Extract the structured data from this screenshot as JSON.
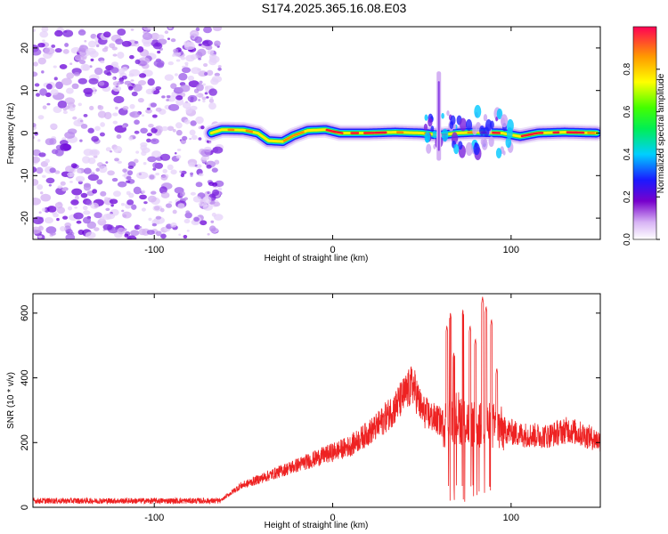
{
  "title": "S174.2025.365.16.08.E03",
  "chart_data": [
    {
      "type": "heatmap",
      "name": "spectrogram",
      "xlabel": "Height of straight line (km)",
      "ylabel": "Frequency (Hz)",
      "xlim": [
        -168,
        150
      ],
      "ylim": [
        -25,
        25
      ],
      "xticks": [
        -100,
        0,
        100
      ],
      "yticks": [
        -20,
        -10,
        0,
        10,
        20
      ],
      "noise_region_x": [
        -168,
        -63
      ],
      "ridge": [
        {
          "x": -68,
          "y": 0.0
        },
        {
          "x": -62,
          "y": 0.8
        },
        {
          "x": -50,
          "y": 0.7
        },
        {
          "x": -42,
          "y": 0.0
        },
        {
          "x": -36,
          "y": -1.8
        },
        {
          "x": -28,
          "y": -2.0
        },
        {
          "x": -22,
          "y": -0.6
        },
        {
          "x": -14,
          "y": 0.6
        },
        {
          "x": -4,
          "y": 0.8
        },
        {
          "x": 4,
          "y": 0.0
        },
        {
          "x": 20,
          "y": 0.0
        },
        {
          "x": 35,
          "y": 0.2
        },
        {
          "x": 50,
          "y": 0.0
        },
        {
          "x": 60,
          "y": -0.5
        },
        {
          "x": 70,
          "y": 0.0
        },
        {
          "x": 80,
          "y": 0.2
        },
        {
          "x": 95,
          "y": 0.0
        },
        {
          "x": 105,
          "y": -0.8
        },
        {
          "x": 115,
          "y": 0.0
        },
        {
          "x": 130,
          "y": 0.2
        },
        {
          "x": 148,
          "y": 0.0
        }
      ],
      "spike": {
        "x": 57,
        "y_range": [
          -6,
          14
        ]
      }
    },
    {
      "type": "colorbar",
      "label": "Normalized spectral amplitude",
      "range": [
        0,
        1
      ],
      "ticks": [
        "0.0",
        "0.2",
        "0.4",
        "0.6",
        "0.8"
      ]
    },
    {
      "type": "line",
      "name": "snr",
      "xlabel": "Height of straight line (km)",
      "ylabel": "SNR (10 * v/v)",
      "xlim": [
        -168,
        150
      ],
      "ylim": [
        0,
        660
      ],
      "xticks": [
        -100,
        0,
        100
      ],
      "yticks": [
        0,
        200,
        400,
        600
      ],
      "color": "#ee2222",
      "envelope": [
        {
          "x": -168,
          "y": 20
        },
        {
          "x": -63,
          "y": 20
        },
        {
          "x": -52,
          "y": 65
        },
        {
          "x": -30,
          "y": 110
        },
        {
          "x": -10,
          "y": 150
        },
        {
          "x": 10,
          "y": 190
        },
        {
          "x": 25,
          "y": 250
        },
        {
          "x": 35,
          "y": 310
        },
        {
          "x": 42,
          "y": 360
        },
        {
          "x": 45,
          "y": 380
        },
        {
          "x": 50,
          "y": 300
        },
        {
          "x": 55,
          "y": 280
        },
        {
          "x": 62,
          "y": 260
        },
        {
          "x": 70,
          "y": 280
        },
        {
          "x": 80,
          "y": 250
        },
        {
          "x": 90,
          "y": 250
        },
        {
          "x": 95,
          "y": 240
        },
        {
          "x": 105,
          "y": 225
        },
        {
          "x": 120,
          "y": 220
        },
        {
          "x": 132,
          "y": 240
        },
        {
          "x": 140,
          "y": 225
        },
        {
          "x": 150,
          "y": 205
        }
      ],
      "peaks": [
        {
          "x": 64,
          "y": 560
        },
        {
          "x": 66,
          "y": 600
        },
        {
          "x": 68,
          "y": 480
        },
        {
          "x": 73,
          "y": 610
        },
        {
          "x": 77,
          "y": 560
        },
        {
          "x": 80,
          "y": 520
        },
        {
          "x": 84,
          "y": 650
        },
        {
          "x": 86,
          "y": 620
        },
        {
          "x": 89,
          "y": 580
        },
        {
          "x": 92,
          "y": 430
        }
      ]
    }
  ]
}
